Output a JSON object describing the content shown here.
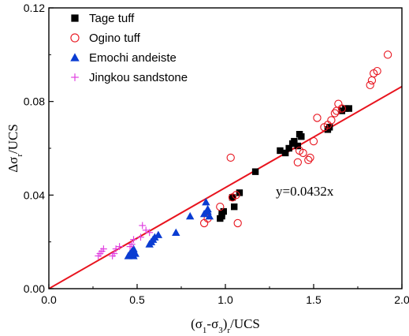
{
  "chart_data": {
    "type": "scatter",
    "x_range": [
      0.0,
      2.0
    ],
    "y_range": [
      0.0,
      0.12
    ],
    "x_ticks": [
      "0.0",
      "0.5",
      "1.0",
      "1.5",
      "2.0"
    ],
    "y_ticks": [
      "0.00",
      "0.04",
      "0.08",
      "0.12"
    ],
    "xlabel": {
      "main": "(σ",
      "sub1": "1",
      "mid": "-σ",
      "sub2": "3",
      "close": ")",
      "sub3": "r",
      "tail": "/UCS"
    },
    "ylabel": {
      "main": "Δσ",
      "sub": "r",
      "tail": "/UCS"
    },
    "annotation": "y=0.0432x",
    "fit_line": {
      "slope": 0.0432,
      "x": [
        0.0,
        2.0
      ],
      "color": "#e8141e"
    },
    "legend_position": "top-left",
    "series": [
      {
        "name": "Tage tuff",
        "marker": "square",
        "color": "#000000",
        "points": [
          [
            0.97,
            0.03
          ],
          [
            0.98,
            0.031
          ],
          [
            0.98,
            0.032
          ],
          [
            0.99,
            0.033
          ],
          [
            1.05,
            0.035
          ],
          [
            1.04,
            0.039
          ],
          [
            1.08,
            0.041
          ],
          [
            1.17,
            0.05
          ],
          [
            1.31,
            0.059
          ],
          [
            1.34,
            0.058
          ],
          [
            1.36,
            0.06
          ],
          [
            1.38,
            0.062
          ],
          [
            1.39,
            0.063
          ],
          [
            1.41,
            0.061
          ],
          [
            1.42,
            0.066
          ],
          [
            1.43,
            0.065
          ],
          [
            1.58,
            0.068
          ],
          [
            1.59,
            0.069
          ],
          [
            1.66,
            0.076
          ],
          [
            1.68,
            0.077
          ],
          [
            1.7,
            0.077
          ]
        ]
      },
      {
        "name": "Ogino tuff",
        "marker": "circle-open",
        "color": "#e8141e",
        "points": [
          [
            0.88,
            0.028
          ],
          [
            0.9,
            0.03
          ],
          [
            0.97,
            0.035
          ],
          [
            1.04,
            0.039
          ],
          [
            1.06,
            0.04
          ],
          [
            1.07,
            0.028
          ],
          [
            1.03,
            0.056
          ],
          [
            1.41,
            0.054
          ],
          [
            1.42,
            0.059
          ],
          [
            1.44,
            0.058
          ],
          [
            1.47,
            0.055
          ],
          [
            1.48,
            0.056
          ],
          [
            1.5,
            0.063
          ],
          [
            1.52,
            0.073
          ],
          [
            1.56,
            0.069
          ],
          [
            1.58,
            0.07
          ],
          [
            1.6,
            0.072
          ],
          [
            1.62,
            0.075
          ],
          [
            1.63,
            0.076
          ],
          [
            1.64,
            0.079
          ],
          [
            1.66,
            0.077
          ],
          [
            1.82,
            0.087
          ],
          [
            1.83,
            0.089
          ],
          [
            1.84,
            0.092
          ],
          [
            1.86,
            0.093
          ],
          [
            1.92,
            0.1
          ]
        ]
      },
      {
        "name": "Emochi andeiste",
        "marker": "triangle",
        "color": "#0a3cd2",
        "points": [
          [
            0.45,
            0.014
          ],
          [
            0.46,
            0.015
          ],
          [
            0.47,
            0.016
          ],
          [
            0.48,
            0.017
          ],
          [
            0.48,
            0.014
          ],
          [
            0.49,
            0.015
          ],
          [
            0.57,
            0.019
          ],
          [
            0.58,
            0.02
          ],
          [
            0.59,
            0.021
          ],
          [
            0.6,
            0.022
          ],
          [
            0.62,
            0.023
          ],
          [
            0.72,
            0.024
          ],
          [
            0.8,
            0.031
          ],
          [
            0.88,
            0.032
          ],
          [
            0.89,
            0.037
          ],
          [
            0.9,
            0.034
          ],
          [
            0.91,
            0.031
          ],
          [
            0.9,
            0.033
          ]
        ]
      },
      {
        "name": "Jingkou sandstone",
        "marker": "plus",
        "color": "#e040e0",
        "points": [
          [
            0.28,
            0.014
          ],
          [
            0.29,
            0.015
          ],
          [
            0.3,
            0.016
          ],
          [
            0.31,
            0.017
          ],
          [
            0.36,
            0.014
          ],
          [
            0.37,
            0.015
          ],
          [
            0.38,
            0.017
          ],
          [
            0.4,
            0.018
          ],
          [
            0.46,
            0.018
          ],
          [
            0.47,
            0.019
          ],
          [
            0.48,
            0.021
          ],
          [
            0.52,
            0.022
          ],
          [
            0.53,
            0.027
          ],
          [
            0.55,
            0.025
          ],
          [
            0.57,
            0.024
          ]
        ]
      }
    ]
  }
}
